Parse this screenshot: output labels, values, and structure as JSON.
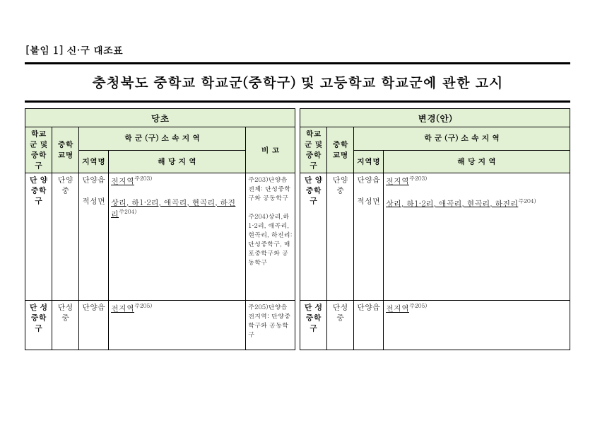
{
  "header_label": "[붙임 1] 신·구 대조표",
  "main_title": "충청북도 중학교 학교군(중학구) 및 고등학교 학교군에 관한 고시",
  "left": {
    "panel_title": "당초",
    "th_school_group": "학교군 및 중학구",
    "th_school_name": "중학교명",
    "th_district": "학 군 (구)  소 속 지 역",
    "th_region_name": "지역명",
    "th_region_detail": "해    당    지    역",
    "th_note": "비    고",
    "rows": [
      {
        "group": "단  양 중학구",
        "school": "단양중",
        "regions": [
          {
            "name": "단양읍",
            "detail": "전지역",
            "detail_sup": "주203)"
          },
          {
            "name": "적성면",
            "detail": "상리, 하1·2리, 애곡리, 현곡리, 하진리",
            "detail_sup": "주204)"
          }
        ],
        "notes": [
          "주203)단양읍 전체: 단성중학구와 공동학구",
          "주204)상리,하1·2리, 애곡리, 현곡리, 하진리: 단성중학구, 매포중학구와 공동학구"
        ]
      },
      {
        "group": "단  성 중학구",
        "school": "단성중",
        "regions": [
          {
            "name": "단양읍",
            "detail": "전지역",
            "detail_sup": "주205)"
          }
        ],
        "notes": [
          "주205)단양읍 전지역: 단양중학구와 공동학구"
        ]
      }
    ]
  },
  "right": {
    "panel_title": "변경(안)",
    "th_school_group": "학교군 및 중학구",
    "th_school_name": "중학교명",
    "th_district": "학 군 (구)  소 속 지 역",
    "th_region_name": "지역명",
    "th_region_detail": "해    당    지    역",
    "rows": [
      {
        "group": "단  양 중학구",
        "school": "단양중",
        "regions": [
          {
            "name": "단양읍",
            "detail": "전지역",
            "detail_sup": "주203)"
          },
          {
            "name": "적성면",
            "detail": "상리, 하1·2리, 애곡리, 현곡리, 하진리",
            "detail_sup": "주204)"
          }
        ]
      },
      {
        "group": "단  성 중학구",
        "school": "단성중",
        "regions": [
          {
            "name": "단양읍",
            "detail": "전지역",
            "detail_sup": "주205)"
          }
        ]
      }
    ]
  }
}
